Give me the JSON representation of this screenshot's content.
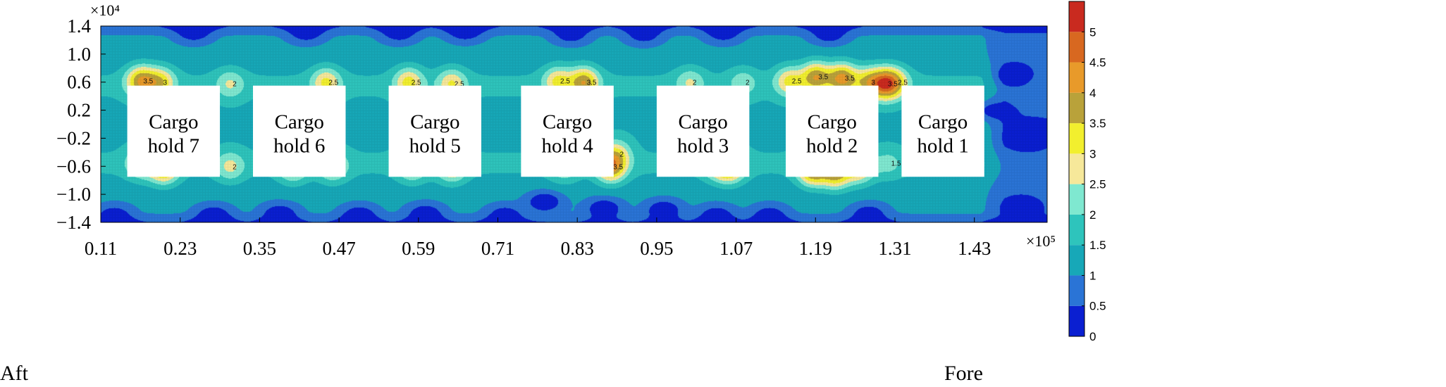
{
  "chart_data": {
    "type": "heatmap",
    "x_ticks": [
      "0.11",
      "0.23",
      "0.35",
      "0.47",
      "0.59",
      "0.71",
      "0.83",
      "0.95",
      "1.07",
      "1.19",
      "1.31",
      "1.43"
    ],
    "x_values": [
      0.11,
      0.23,
      0.35,
      0.47,
      0.59,
      0.71,
      0.83,
      0.95,
      1.07,
      1.19,
      1.31,
      1.43
    ],
    "x_exponent": "×10⁵",
    "xlim": [
      0.11,
      1.54
    ],
    "y_ticks": [
      "1.4",
      "1.0",
      "0.6",
      "0.2",
      "−0.2",
      "−0.6",
      "−1.0",
      "−1.4"
    ],
    "y_values": [
      1.4,
      1.0,
      0.6,
      0.2,
      -0.2,
      -0.6,
      -1.0,
      -1.4
    ],
    "y_exponent": "×10⁴",
    "ylim": [
      -1.4,
      1.4
    ],
    "colorbar": {
      "ticks": [
        "0",
        "0.5",
        "1",
        "1.5",
        "2",
        "2.5",
        "3",
        "3.5",
        "4",
        "4.5",
        "5"
      ],
      "range": [
        0,
        5.5
      ],
      "colors": [
        "#0a1fd1",
        "#2a74d6",
        "#17a8b8",
        "#2ec4bc",
        "#7fe8d0",
        "#f6e89a",
        "#f2ef2e",
        "#b9a23a",
        "#e89a2a",
        "#d86820",
        "#c92a1f"
      ]
    },
    "holds": [
      {
        "label_line1": "Cargo",
        "label_line2": "hold 7",
        "x_range": [
          0.15,
          0.29
        ]
      },
      {
        "label_line1": "Cargo",
        "label_line2": "hold 6",
        "x_range": [
          0.34,
          0.48
        ]
      },
      {
        "label_line1": "Cargo",
        "label_line2": "hold 5",
        "x_range": [
          0.545,
          0.685
        ]
      },
      {
        "label_line1": "Cargo",
        "label_line2": "hold 4",
        "x_range": [
          0.745,
          0.885
        ]
      },
      {
        "label_line1": "Cargo",
        "label_line2": "hold 3",
        "x_range": [
          0.95,
          1.09
        ]
      },
      {
        "label_line1": "Cargo",
        "label_line2": "hold 2",
        "x_range": [
          1.145,
          1.285
        ]
      },
      {
        "label_line1": "Cargo",
        "label_line2": "hold 1",
        "x_range": [
          1.32,
          1.445
        ]
      }
    ],
    "hold_y_range": [
      -0.75,
      0.55
    ],
    "hotspots": [
      {
        "x": 0.17,
        "y": 0.62,
        "v": 3.6
      },
      {
        "x": 0.2,
        "y": 0.6,
        "v": 3.0
      },
      {
        "x": 0.205,
        "y": -0.62,
        "v": 3.6
      },
      {
        "x": 0.17,
        "y": -0.55,
        "v": 2.6
      },
      {
        "x": 0.305,
        "y": 0.58,
        "v": 2.2
      },
      {
        "x": 0.305,
        "y": -0.6,
        "v": 2.3
      },
      {
        "x": 0.4,
        "y": -0.6,
        "v": 2.8
      },
      {
        "x": 0.45,
        "y": 0.6,
        "v": 2.8
      },
      {
        "x": 0.46,
        "y": -0.6,
        "v": 2.6
      },
      {
        "x": 0.575,
        "y": 0.6,
        "v": 2.9
      },
      {
        "x": 0.58,
        "y": -0.6,
        "v": 2.6
      },
      {
        "x": 0.64,
        "y": 0.58,
        "v": 2.7
      },
      {
        "x": 0.64,
        "y": -0.6,
        "v": 3.0
      },
      {
        "x": 0.8,
        "y": 0.62,
        "v": 2.8
      },
      {
        "x": 0.84,
        "y": 0.6,
        "v": 3.6
      },
      {
        "x": 0.81,
        "y": -0.58,
        "v": 2.4
      },
      {
        "x": 0.88,
        "y": -0.6,
        "v": 3.7
      },
      {
        "x": 0.89,
        "y": -0.42,
        "v": 2.4
      },
      {
        "x": 1.0,
        "y": 0.6,
        "v": 2.2
      },
      {
        "x": 1.06,
        "y": -0.6,
        "v": 3.6
      },
      {
        "x": 1.04,
        "y": -0.55,
        "v": 2.6
      },
      {
        "x": 1.08,
        "y": 0.6,
        "v": 2.0
      },
      {
        "x": 1.15,
        "y": 0.62,
        "v": 2.8
      },
      {
        "x": 1.19,
        "y": 0.68,
        "v": 3.6
      },
      {
        "x": 1.23,
        "y": 0.66,
        "v": 3.8
      },
      {
        "x": 1.27,
        "y": 0.6,
        "v": 3.0
      },
      {
        "x": 1.185,
        "y": -0.65,
        "v": 3.9
      },
      {
        "x": 1.22,
        "y": -0.7,
        "v": 3.5
      },
      {
        "x": 1.255,
        "y": -0.62,
        "v": 3.0
      },
      {
        "x": 1.295,
        "y": 0.58,
        "v": 3.7
      },
      {
        "x": 1.31,
        "y": 0.6,
        "v": 2.6
      },
      {
        "x": 1.3,
        "y": -0.55,
        "v": 1.8
      }
    ],
    "lowspots": [
      {
        "x": 0.25,
        "y": 1.32,
        "v": 0.3
      },
      {
        "x": 0.42,
        "y": 1.32,
        "v": 0.3
      },
      {
        "x": 0.56,
        "y": 1.32,
        "v": 0.3
      },
      {
        "x": 0.66,
        "y": 1.34,
        "v": 0.2
      },
      {
        "x": 0.82,
        "y": 1.3,
        "v": 0.3
      },
      {
        "x": 0.93,
        "y": 1.3,
        "v": 0.3
      },
      {
        "x": 1.05,
        "y": 1.32,
        "v": 0.3
      },
      {
        "x": 1.21,
        "y": 1.3,
        "v": 0.3
      },
      {
        "x": 0.13,
        "y": -1.3,
        "v": 0.3
      },
      {
        "x": 0.28,
        "y": -1.3,
        "v": 0.2
      },
      {
        "x": 0.38,
        "y": -1.28,
        "v": 0.2
      },
      {
        "x": 0.5,
        "y": -1.3,
        "v": 0.2
      },
      {
        "x": 0.6,
        "y": -1.28,
        "v": 0.2
      },
      {
        "x": 0.72,
        "y": -1.3,
        "v": 0.3
      },
      {
        "x": 0.78,
        "y": -1.1,
        "v": 0.2
      },
      {
        "x": 0.87,
        "y": -1.2,
        "v": 0.2
      },
      {
        "x": 0.96,
        "y": -1.22,
        "v": 0.2
      },
      {
        "x": 1.04,
        "y": -1.3,
        "v": 0.3
      },
      {
        "x": 1.12,
        "y": -1.3,
        "v": 0.3
      },
      {
        "x": 1.27,
        "y": -1.28,
        "v": 0.3
      },
      {
        "x": 1.49,
        "y": 0.7,
        "v": 0.1
      },
      {
        "x": 1.51,
        "y": -0.2,
        "v": 0.1
      },
      {
        "x": 1.5,
        "y": -1.2,
        "v": 0.1
      },
      {
        "x": 1.45,
        "y": 0.2,
        "v": 0.5
      }
    ]
  },
  "labels": {
    "aft": "Aft",
    "fore": "Fore"
  }
}
